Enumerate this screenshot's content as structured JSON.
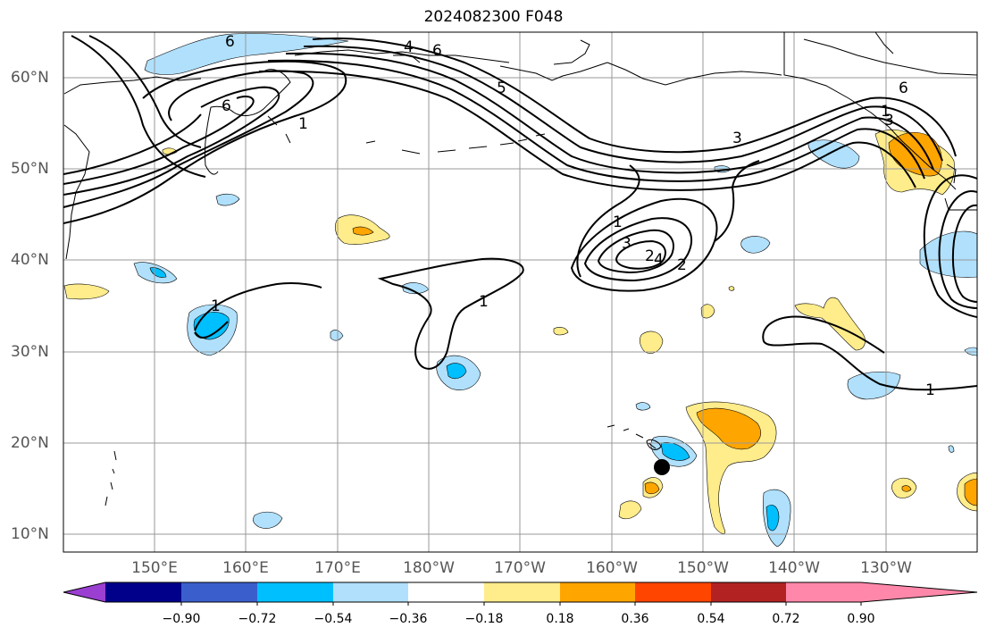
{
  "title": "2024082300 F048",
  "lat_labels": [
    "60°N",
    "50°N",
    "40°N",
    "30°N",
    "20°N",
    "10°N"
  ],
  "lon_labels": [
    "150°E",
    "160°E",
    "170°E",
    "180°W",
    "170°W",
    "160°W",
    "150°W",
    "140°W",
    "130°W"
  ],
  "colorbar": {
    "tick_labels": [
      "−0.90",
      "−0.72",
      "−0.54",
      "−0.36",
      "−0.18",
      "0.18",
      "0.36",
      "0.54",
      "0.72",
      "0.90"
    ],
    "colors": [
      "#9a3fd1",
      "#00008b",
      "#3a5fcd",
      "#00bfff",
      "#b0e0fc",
      "#ffffff",
      "#ffec8b",
      "#ffa500",
      "#ff4500",
      "#b22222",
      "#ff88aa"
    ]
  },
  "contour_labels": [
    "6",
    "6",
    "6",
    "6",
    "5",
    "4",
    "3",
    "2",
    "1",
    "1",
    "1",
    "1",
    "1",
    "3",
    "2",
    "4",
    "3",
    "1"
  ],
  "fill_colors": {
    "light_blue": "#b0e0fc",
    "blue": "#00bfff",
    "yellow": "#ffec8b",
    "orange": "#ffa500"
  },
  "marker": "storm-center-dot"
}
